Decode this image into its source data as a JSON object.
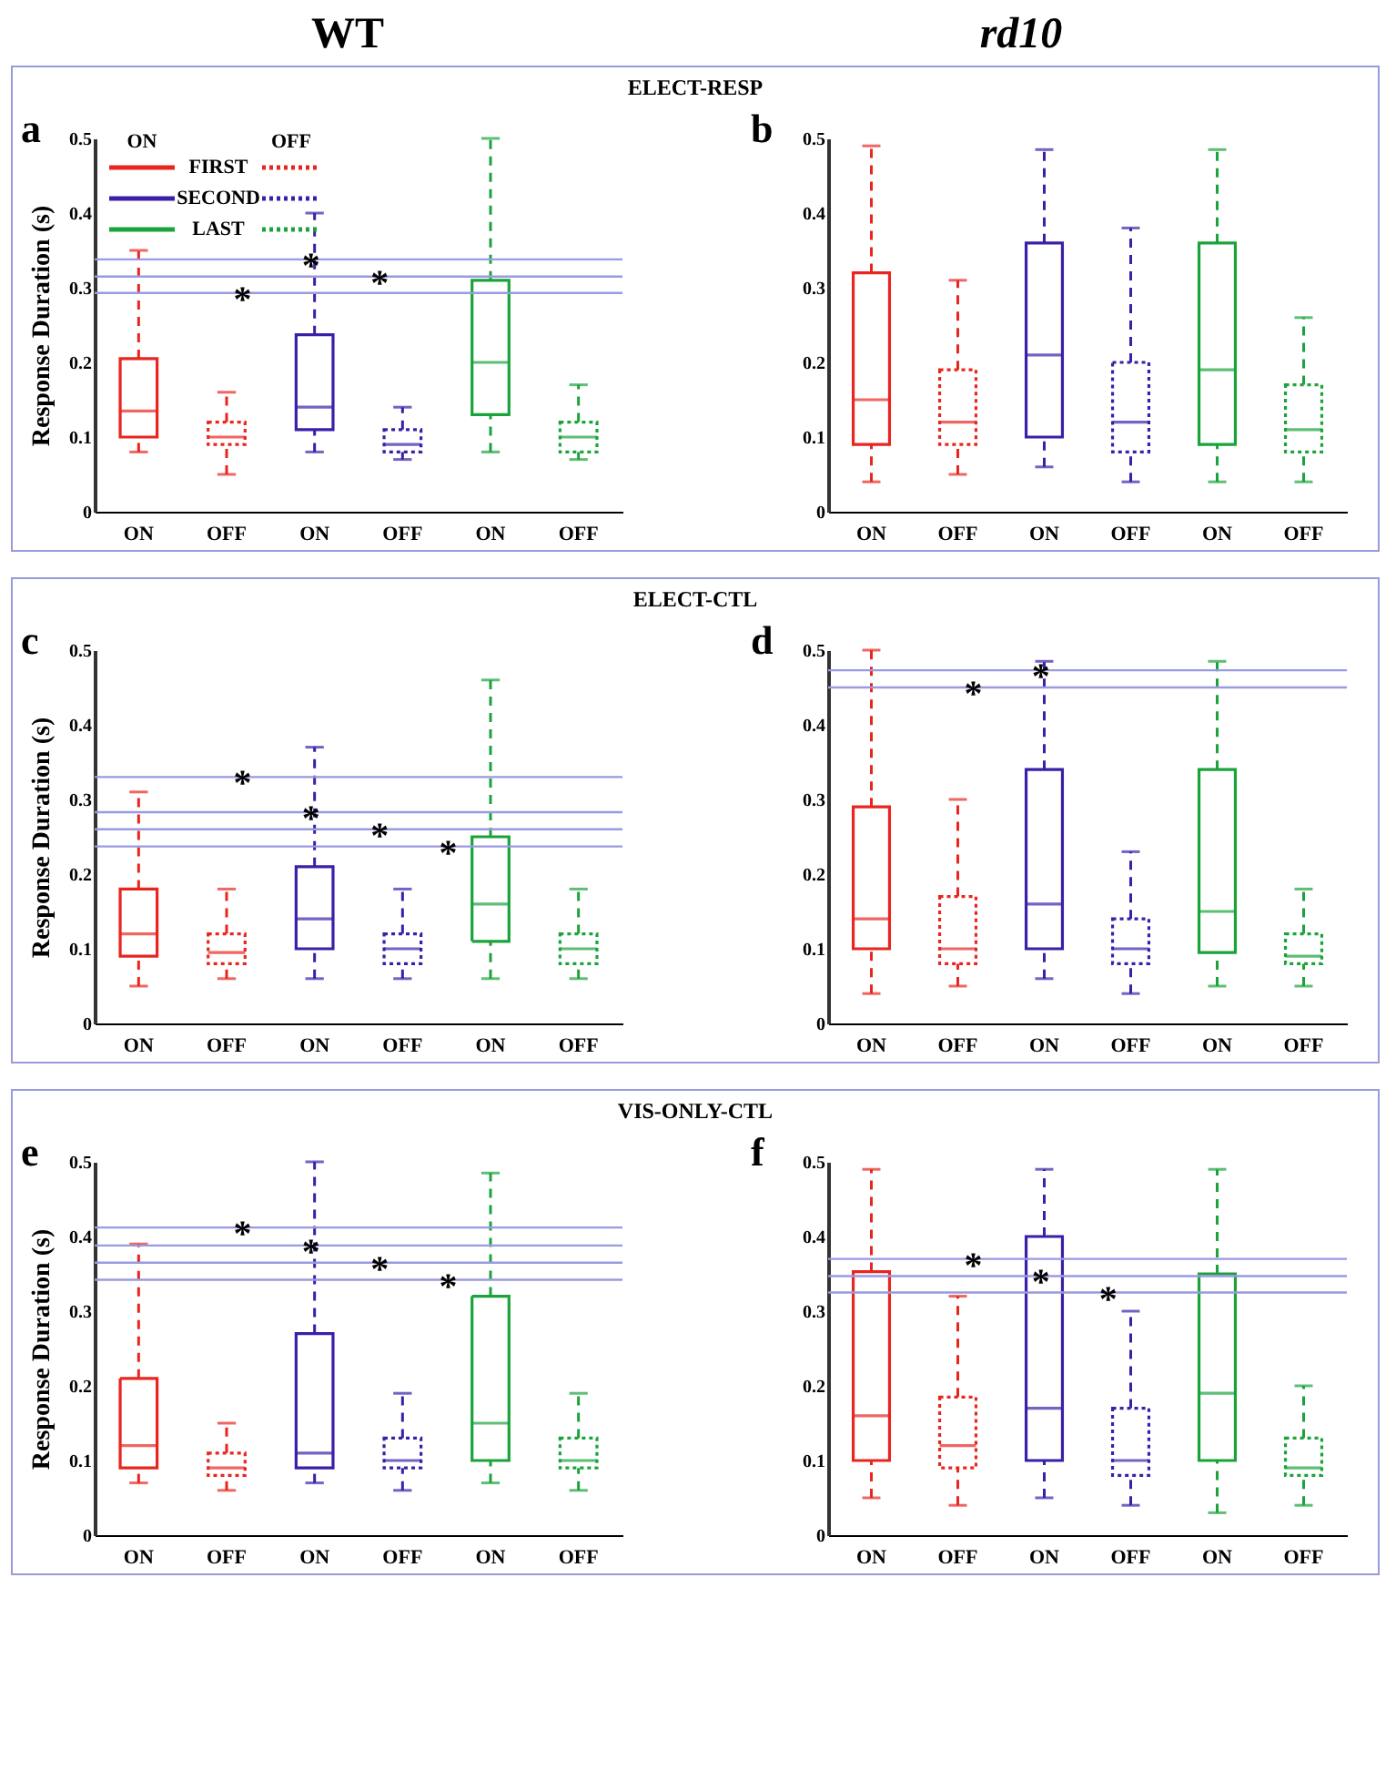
{
  "chart_data": [
    {
      "type": "box",
      "title": "a",
      "subtitle": "ELECT-RESP",
      "ylabel": "Response Duration (s)",
      "categories": [
        "ON",
        "OFF",
        "ON",
        "OFF",
        "ON",
        "OFF"
      ],
      "ylim": [
        0,
        0.5
      ],
      "yticks": [
        0,
        0.1,
        0.2,
        0.3,
        0.4,
        0.5
      ],
      "legend": "top left",
      "annotations": [
        "WT",
        "ON",
        "OFF"
      ],
      "series": [
        {
          "name": "FIRST",
          "color": "#e8251f",
          "line_style": "solid",
          "boxes": [
            {
              "low": 0.08,
              "q1": 0.1,
              "median": 0.135,
              "q3": 0.205,
              "high": 0.35
            },
            null,
            null,
            null,
            null,
            null
          ]
        },
        {
          "color": "#e8251f",
          "line_style": "dotted",
          "boxes": [
            null,
            {
              "low": 0.05,
              "q1": 0.09,
              "median": 0.1,
              "q3": 0.12,
              "high": 0.16
            },
            null,
            null,
            null,
            null
          ]
        },
        {
          "name": "SECOND",
          "color": "#3b1fa8",
          "line_style": "solid",
          "boxes": [
            null,
            null,
            {
              "low": 0.08,
              "q1": 0.11,
              "median": 0.14,
              "q3": 0.237,
              "high": 0.4
            },
            null,
            null,
            null
          ]
        },
        {
          "color": "#3b1fa8",
          "line_style": "dotted",
          "boxes": [
            null,
            null,
            null,
            {
              "low": 0.07,
              "q1": 0.08,
              "median": 0.09,
              "q3": 0.11,
              "high": 0.14
            },
            null,
            null
          ]
        },
        {
          "name": "LAST",
          "color": "#1aa33a",
          "line_style": "solid",
          "boxes": [
            null,
            null,
            null,
            null,
            {
              "low": 0.08,
              "q1": 0.13,
              "median": 0.2,
              "q3": 0.31,
              "high": 0.5
            },
            null
          ]
        },
        {
          "color": "#1aa33a",
          "line_style": "dotted",
          "boxes": [
            null,
            null,
            null,
            null,
            null,
            {
              "low": 0.07,
              "q1": 0.08,
              "median": 0.1,
              "q3": 0.12,
              "high": 0.17
            }
          ]
        }
      ],
      "ref_lines": [
        {
          "axis": "y",
          "value": 0.293,
          "label": "*",
          "color": "#9a9ae0"
        },
        {
          "axis": "y",
          "value": 0.338,
          "label": "*",
          "color": "#9a9ae0"
        },
        {
          "axis": "y",
          "value": 0.315,
          "label": "*",
          "color": "#9a9ae0"
        }
      ]
    },
    {
      "type": "box",
      "title": "b",
      "categories": [
        "ON",
        "OFF",
        "ON",
        "OFF",
        "ON",
        "OFF"
      ],
      "ylim": [
        0,
        0.5
      ],
      "yticks": [
        0,
        0.1,
        0.2,
        0.3,
        0.4,
        0.5
      ],
      "annotations": [
        "rd10"
      ],
      "series": [
        {
          "color": "#e8251f",
          "line_style": "solid",
          "boxes": [
            {
              "low": 0.04,
              "q1": 0.09,
              "median": 0.15,
              "q3": 0.32,
              "high": 0.49
            },
            null,
            null,
            null,
            null,
            null
          ]
        },
        {
          "color": "#e8251f",
          "line_style": "dotted",
          "boxes": [
            null,
            {
              "low": 0.05,
              "q1": 0.09,
              "median": 0.12,
              "q3": 0.19,
              "high": 0.31
            },
            null,
            null,
            null,
            null
          ]
        },
        {
          "color": "#3b1fa8",
          "line_style": "solid",
          "boxes": [
            null,
            null,
            {
              "low": 0.06,
              "q1": 0.1,
              "median": 0.21,
              "q3": 0.36,
              "high": 0.485
            },
            null,
            null,
            null
          ]
        },
        {
          "color": "#3b1fa8",
          "line_style": "dotted",
          "boxes": [
            null,
            null,
            null,
            {
              "low": 0.04,
              "q1": 0.08,
              "median": 0.12,
              "q3": 0.2,
              "high": 0.38
            },
            null,
            null
          ]
        },
        {
          "color": "#1aa33a",
          "line_style": "solid",
          "boxes": [
            null,
            null,
            null,
            null,
            {
              "low": 0.04,
              "q1": 0.09,
              "median": 0.19,
              "q3": 0.36,
              "high": 0.485
            },
            null
          ]
        },
        {
          "color": "#1aa33a",
          "line_style": "dotted",
          "boxes": [
            null,
            null,
            null,
            null,
            null,
            {
              "low": 0.04,
              "q1": 0.08,
              "median": 0.11,
              "q3": 0.17,
              "high": 0.26
            }
          ]
        }
      ]
    },
    {
      "type": "box",
      "title": "c",
      "subtitle": "ELECT-CTL",
      "ylabel": "Response Duration (s)",
      "categories": [
        "ON",
        "OFF",
        "ON",
        "OFF",
        "ON",
        "OFF"
      ],
      "ylim": [
        0,
        0.5
      ],
      "yticks": [
        0,
        0.1,
        0.2,
        0.3,
        0.4,
        0.5
      ],
      "series": [
        {
          "color": "#e8251f",
          "line_style": "solid",
          "boxes": [
            {
              "low": 0.05,
              "q1": 0.09,
              "median": 0.12,
              "q3": 0.18,
              "high": 0.31
            },
            null,
            null,
            null,
            null,
            null
          ]
        },
        {
          "color": "#e8251f",
          "line_style": "dotted",
          "boxes": [
            null,
            {
              "low": 0.06,
              "q1": 0.08,
              "median": 0.095,
              "q3": 0.12,
              "high": 0.18
            },
            null,
            null,
            null,
            null
          ]
        },
        {
          "color": "#3b1fa8",
          "line_style": "solid",
          "boxes": [
            null,
            null,
            {
              "low": 0.06,
              "q1": 0.1,
              "median": 0.14,
              "q3": 0.21,
              "high": 0.37
            },
            null,
            null,
            null
          ]
        },
        {
          "color": "#3b1fa8",
          "line_style": "dotted",
          "boxes": [
            null,
            null,
            null,
            {
              "low": 0.06,
              "q1": 0.08,
              "median": 0.1,
              "q3": 0.12,
              "high": 0.18
            },
            null,
            null
          ]
        },
        {
          "color": "#1aa33a",
          "line_style": "solid",
          "boxes": [
            null,
            null,
            null,
            null,
            {
              "low": 0.06,
              "q1": 0.11,
              "median": 0.16,
              "q3": 0.25,
              "high": 0.46
            },
            null
          ]
        },
        {
          "color": "#1aa33a",
          "line_style": "dotted",
          "boxes": [
            null,
            null,
            null,
            null,
            null,
            {
              "low": 0.06,
              "q1": 0.08,
              "median": 0.1,
              "q3": 0.12,
              "high": 0.18
            }
          ]
        }
      ],
      "ref_lines": [
        {
          "axis": "y",
          "value": 0.33,
          "label": "*",
          "color": "#9a9ae0"
        },
        {
          "axis": "y",
          "value": 0.283,
          "label": "*",
          "color": "#9a9ae0"
        },
        {
          "axis": "y",
          "value": 0.26,
          "label": "*",
          "color": "#9a9ae0"
        },
        {
          "axis": "y",
          "value": 0.237,
          "label": "*",
          "color": "#9a9ae0"
        }
      ]
    },
    {
      "type": "box",
      "title": "d",
      "categories": [
        "ON",
        "OFF",
        "ON",
        "OFF",
        "ON",
        "OFF"
      ],
      "ylim": [
        0,
        0.5
      ],
      "yticks": [
        0,
        0.1,
        0.2,
        0.3,
        0.4,
        0.5
      ],
      "series": [
        {
          "color": "#e8251f",
          "line_style": "solid",
          "boxes": [
            {
              "low": 0.04,
              "q1": 0.1,
              "median": 0.14,
              "q3": 0.29,
              "high": 0.5
            },
            null,
            null,
            null,
            null,
            null
          ]
        },
        {
          "color": "#e8251f",
          "line_style": "dotted",
          "boxes": [
            null,
            {
              "low": 0.05,
              "q1": 0.08,
              "median": 0.1,
              "q3": 0.17,
              "high": 0.3
            },
            null,
            null,
            null,
            null
          ]
        },
        {
          "color": "#3b1fa8",
          "line_style": "solid",
          "boxes": [
            null,
            null,
            {
              "low": 0.06,
              "q1": 0.1,
              "median": 0.16,
              "q3": 0.34,
              "high": 0.485
            },
            null,
            null,
            null
          ]
        },
        {
          "color": "#3b1fa8",
          "line_style": "dotted",
          "boxes": [
            null,
            null,
            null,
            {
              "low": 0.04,
              "q1": 0.08,
              "median": 0.1,
              "q3": 0.14,
              "high": 0.23
            },
            null,
            null
          ]
        },
        {
          "color": "#1aa33a",
          "line_style": "solid",
          "boxes": [
            null,
            null,
            null,
            null,
            {
              "low": 0.05,
              "q1": 0.095,
              "median": 0.15,
              "q3": 0.34,
              "high": 0.485
            },
            null
          ]
        },
        {
          "color": "#1aa33a",
          "line_style": "dotted",
          "boxes": [
            null,
            null,
            null,
            null,
            null,
            {
              "low": 0.05,
              "q1": 0.08,
              "median": 0.09,
              "q3": 0.12,
              "high": 0.18
            }
          ]
        }
      ],
      "ref_lines": [
        {
          "axis": "y",
          "value": 0.45,
          "label": "*",
          "color": "#9a9ae0"
        },
        {
          "axis": "y",
          "value": 0.473,
          "label": "*",
          "color": "#9a9ae0"
        }
      ]
    },
    {
      "type": "box",
      "title": "e",
      "subtitle": "VIS-ONLY-CTL",
      "ylabel": "Response Duration (s)",
      "categories": [
        "ON",
        "OFF",
        "ON",
        "OFF",
        "ON",
        "OFF"
      ],
      "ylim": [
        0,
        0.5
      ],
      "yticks": [
        0,
        0.1,
        0.2,
        0.3,
        0.4,
        0.5
      ],
      "series": [
        {
          "color": "#e8251f",
          "line_style": "solid",
          "boxes": [
            {
              "low": 0.07,
              "q1": 0.09,
              "median": 0.12,
              "q3": 0.21,
              "high": 0.39
            },
            null,
            null,
            null,
            null,
            null
          ]
        },
        {
          "color": "#e8251f",
          "line_style": "dotted",
          "boxes": [
            null,
            {
              "low": 0.06,
              "q1": 0.08,
              "median": 0.09,
              "q3": 0.11,
              "high": 0.15
            },
            null,
            null,
            null,
            null
          ]
        },
        {
          "color": "#3b1fa8",
          "line_style": "solid",
          "boxes": [
            null,
            null,
            {
              "low": 0.07,
              "q1": 0.09,
              "median": 0.11,
              "q3": 0.27,
              "high": 0.5
            },
            null,
            null,
            null
          ]
        },
        {
          "color": "#3b1fa8",
          "line_style": "dotted",
          "boxes": [
            null,
            null,
            null,
            {
              "low": 0.06,
              "q1": 0.09,
              "median": 0.1,
              "q3": 0.13,
              "high": 0.19
            },
            null,
            null
          ]
        },
        {
          "color": "#1aa33a",
          "line_style": "solid",
          "boxes": [
            null,
            null,
            null,
            null,
            {
              "low": 0.07,
              "q1": 0.1,
              "median": 0.15,
              "q3": 0.32,
              "high": 0.485
            },
            null
          ]
        },
        {
          "color": "#1aa33a",
          "line_style": "dotted",
          "boxes": [
            null,
            null,
            null,
            null,
            null,
            {
              "low": 0.06,
              "q1": 0.09,
              "median": 0.1,
              "q3": 0.13,
              "high": 0.19
            }
          ]
        }
      ],
      "ref_lines": [
        {
          "axis": "y",
          "value": 0.412,
          "label": "*",
          "color": "#9a9ae0"
        },
        {
          "axis": "y",
          "value": 0.388,
          "label": "*",
          "color": "#9a9ae0"
        },
        {
          "axis": "y",
          "value": 0.365,
          "label": "*",
          "color": "#9a9ae0"
        },
        {
          "axis": "y",
          "value": 0.342,
          "label": "*",
          "color": "#9a9ae0"
        }
      ]
    },
    {
      "type": "box",
      "title": "f",
      "categories": [
        "ON",
        "OFF",
        "ON",
        "OFF",
        "ON",
        "OFF"
      ],
      "ylim": [
        0,
        0.5
      ],
      "yticks": [
        0,
        0.1,
        0.2,
        0.3,
        0.4,
        0.5
      ],
      "series": [
        {
          "color": "#e8251f",
          "line_style": "solid",
          "boxes": [
            {
              "low": 0.05,
              "q1": 0.1,
              "median": 0.16,
              "q3": 0.353,
              "high": 0.49
            },
            null,
            null,
            null,
            null,
            null
          ]
        },
        {
          "color": "#e8251f",
          "line_style": "dotted",
          "boxes": [
            null,
            {
              "low": 0.04,
              "q1": 0.09,
              "median": 0.12,
              "q3": 0.185,
              "high": 0.32
            },
            null,
            null,
            null,
            null
          ]
        },
        {
          "color": "#3b1fa8",
          "line_style": "solid",
          "boxes": [
            null,
            null,
            {
              "low": 0.05,
              "q1": 0.1,
              "median": 0.17,
              "q3": 0.4,
              "high": 0.49
            },
            null,
            null,
            null
          ]
        },
        {
          "color": "#3b1fa8",
          "line_style": "dotted",
          "boxes": [
            null,
            null,
            null,
            {
              "low": 0.04,
              "q1": 0.08,
              "median": 0.1,
              "q3": 0.17,
              "high": 0.3
            },
            null,
            null
          ]
        },
        {
          "color": "#1aa33a",
          "line_style": "solid",
          "boxes": [
            null,
            null,
            null,
            null,
            {
              "low": 0.03,
              "q1": 0.1,
              "median": 0.19,
              "q3": 0.35,
              "high": 0.49
            },
            null
          ]
        },
        {
          "color": "#1aa33a",
          "line_style": "dotted",
          "boxes": [
            null,
            null,
            null,
            null,
            null,
            {
              "low": 0.04,
              "q1": 0.08,
              "median": 0.09,
              "q3": 0.13,
              "high": 0.2
            }
          ]
        }
      ],
      "ref_lines": [
        {
          "axis": "y",
          "value": 0.37,
          "label": "*",
          "color": "#9a9ae0"
        },
        {
          "axis": "y",
          "value": 0.347,
          "label": "*",
          "color": "#9a9ae0"
        },
        {
          "axis": "y",
          "value": 0.325,
          "label": "*",
          "color": "#9a9ae0"
        }
      ]
    }
  ]
}
